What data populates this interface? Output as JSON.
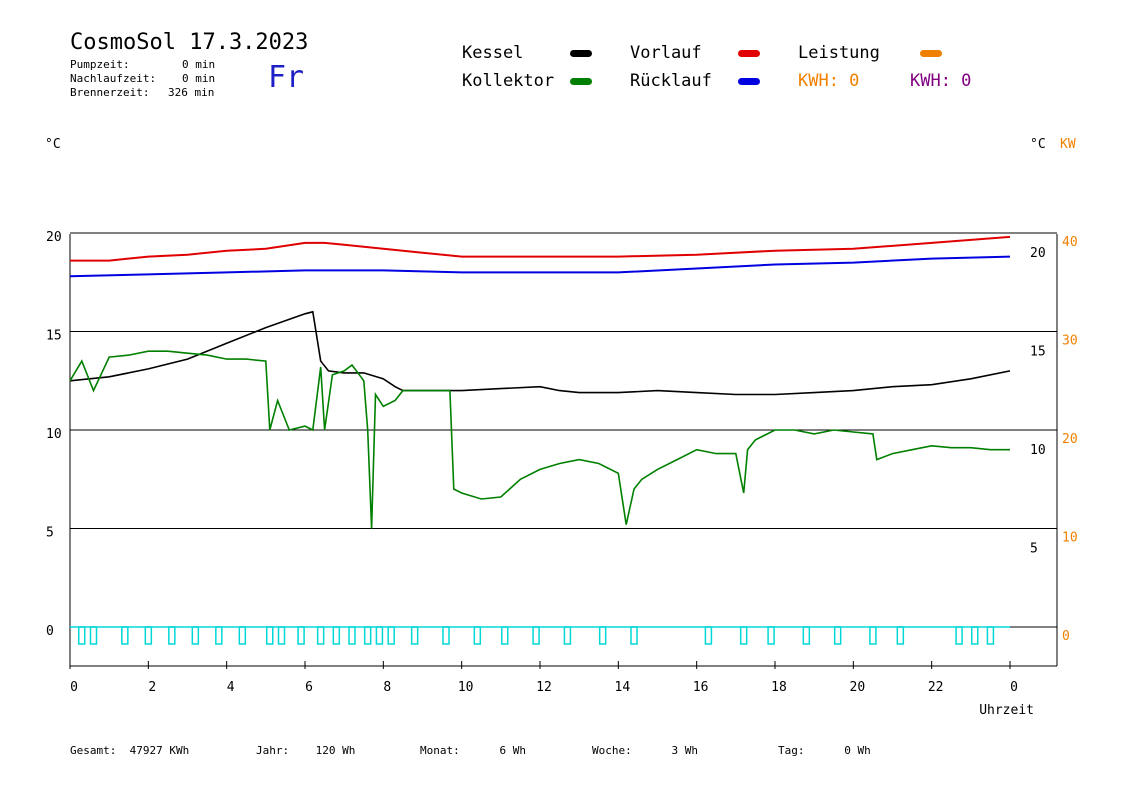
{
  "header": {
    "title": "CosmoSol 17.3.2023",
    "day": "Fr",
    "stats": [
      {
        "label": "Pumpzeit:",
        "value": "0 min"
      },
      {
        "label": "Nachlaufzeit:",
        "value": "0 min"
      },
      {
        "label": "Brennerzeit:",
        "value": "326 min"
      }
    ]
  },
  "legend": {
    "items": [
      {
        "label": "Kessel",
        "color": "#000000"
      },
      {
        "label": "Vorlauf",
        "color": "#e00000"
      },
      {
        "label": "Leistung",
        "color": "#f08000"
      },
      {
        "label": "Kollektor",
        "color": "#008000"
      },
      {
        "label": "Rücklauf",
        "color": "#0000e0"
      }
    ],
    "kwh_orange": "KWH: 0",
    "kwh_purple": "KWH: 0"
  },
  "axis_units": {
    "left": "°C",
    "right_c": "°C",
    "right_kw": "KW"
  },
  "footer": {
    "gesamt": "Gesamt:  47927 KWh",
    "jahr": "Jahr:    120 Wh",
    "monat": "Monat:      6 Wh",
    "woche": "Woche:      3 Wh",
    "tag": "Tag:      0 Wh"
  },
  "chart_data": {
    "type": "line",
    "xlabel": "Uhrzeit",
    "x_ticks": [
      "0",
      "2",
      "4",
      "6",
      "8",
      "10",
      "12",
      "14",
      "16",
      "18",
      "20",
      "22",
      "0"
    ],
    "xlim": [
      0,
      24
    ],
    "ylim": [
      -2,
      20.5
    ],
    "left_ticks": [
      "20",
      "15",
      "10",
      "5",
      "0"
    ],
    "right_c_ticks": [
      "20",
      "15",
      "10",
      "5"
    ],
    "right_kw_ticks": [
      "40",
      "30",
      "20",
      "10",
      "0"
    ],
    "grid": true,
    "colors": {
      "Kessel": "#000000",
      "Kollektor": "#008000",
      "Vorlauf": "#e00000",
      "Rücklauf": "#0000e0",
      "Pump": "#00d8d8"
    },
    "series": [
      {
        "name": "Vorlauf",
        "x": [
          0,
          1,
          2,
          3,
          4,
          5,
          6,
          6.5,
          7,
          8,
          9,
          10,
          12,
          14,
          16,
          18,
          20,
          22,
          24
        ],
        "y": [
          18.6,
          18.6,
          18.8,
          18.9,
          19.1,
          19.2,
          19.5,
          19.5,
          19.4,
          19.2,
          19.0,
          18.8,
          18.8,
          18.8,
          18.9,
          19.1,
          19.2,
          19.5,
          19.8
        ]
      },
      {
        "name": "Rücklauf",
        "x": [
          0,
          2,
          4,
          6,
          8,
          10,
          12,
          14,
          16,
          18,
          20,
          22,
          24
        ],
        "y": [
          17.8,
          17.9,
          18.0,
          18.1,
          18.1,
          18.0,
          18.0,
          18.0,
          18.2,
          18.4,
          18.5,
          18.7,
          18.8
        ]
      },
      {
        "name": "Kessel",
        "x": [
          0,
          1,
          2,
          3,
          4,
          5,
          6,
          6.2,
          6.4,
          6.6,
          7,
          7.5,
          8,
          8.3,
          8.5,
          9,
          10,
          11,
          12,
          12.5,
          13,
          14,
          15,
          16,
          17,
          18,
          19,
          20,
          21,
          22,
          23,
          24
        ],
        "y": [
          12.5,
          12.7,
          13.1,
          13.6,
          14.4,
          15.2,
          15.9,
          16.0,
          13.5,
          13.0,
          12.9,
          12.9,
          12.6,
          12.2,
          12.0,
          12.0,
          12.0,
          12.1,
          12.2,
          12.0,
          11.9,
          11.9,
          12.0,
          11.9,
          11.8,
          11.8,
          11.9,
          12.0,
          12.2,
          12.3,
          12.6,
          13.0
        ]
      },
      {
        "name": "Kollektor",
        "x": [
          0,
          0.3,
          0.6,
          1,
          1.5,
          2,
          2.5,
          3,
          3.5,
          4,
          4.5,
          5,
          5.1,
          5.3,
          5.6,
          6,
          6.2,
          6.4,
          6.5,
          6.7,
          7,
          7.2,
          7.5,
          7.6,
          7.7,
          7.8,
          8,
          8.3,
          8.5,
          9,
          9.5,
          9.7,
          9.8,
          10,
          10.5,
          11,
          11.5,
          12,
          12.5,
          13,
          13.5,
          14,
          14.2,
          14.4,
          14.6,
          15,
          15.5,
          16,
          16.5,
          17,
          17.2,
          17.3,
          17.5,
          18,
          18.5,
          19,
          19.5,
          20,
          20.5,
          20.6,
          21,
          21.5,
          22,
          22.5,
          23,
          23.5,
          24
        ],
        "y": [
          12.5,
          13.5,
          12.0,
          13.7,
          13.8,
          14.0,
          14.0,
          13.9,
          13.8,
          13.6,
          13.6,
          13.5,
          10.0,
          11.5,
          10.0,
          10.2,
          10.0,
          13.2,
          10.0,
          12.8,
          13.0,
          13.3,
          12.5,
          10.0,
          5.0,
          11.8,
          11.2,
          11.5,
          12.0,
          12.0,
          12.0,
          12.0,
          7.0,
          6.8,
          6.5,
          6.6,
          7.5,
          8.0,
          8.3,
          8.5,
          8.3,
          7.8,
          5.2,
          7.0,
          7.5,
          8.0,
          8.5,
          9.0,
          8.8,
          8.8,
          6.8,
          9.0,
          9.5,
          10.0,
          10.0,
          9.8,
          10.0,
          9.9,
          9.8,
          8.5,
          8.8,
          9.0,
          9.2,
          9.1,
          9.1,
          9.0,
          9.0
        ]
      }
    ],
    "pump_pulses_hours": [
      0.3,
      0.6,
      1.4,
      2.0,
      2.6,
      3.2,
      3.8,
      4.4,
      5.1,
      5.4,
      5.9,
      6.4,
      6.8,
      7.2,
      7.6,
      7.9,
      8.2,
      8.8,
      9.6,
      10.4,
      11.1,
      11.9,
      12.7,
      13.6,
      14.4,
      16.3,
      17.2,
      17.9,
      18.8,
      19.6,
      20.5,
      21.2,
      22.7,
      23.1,
      23.5
    ]
  }
}
